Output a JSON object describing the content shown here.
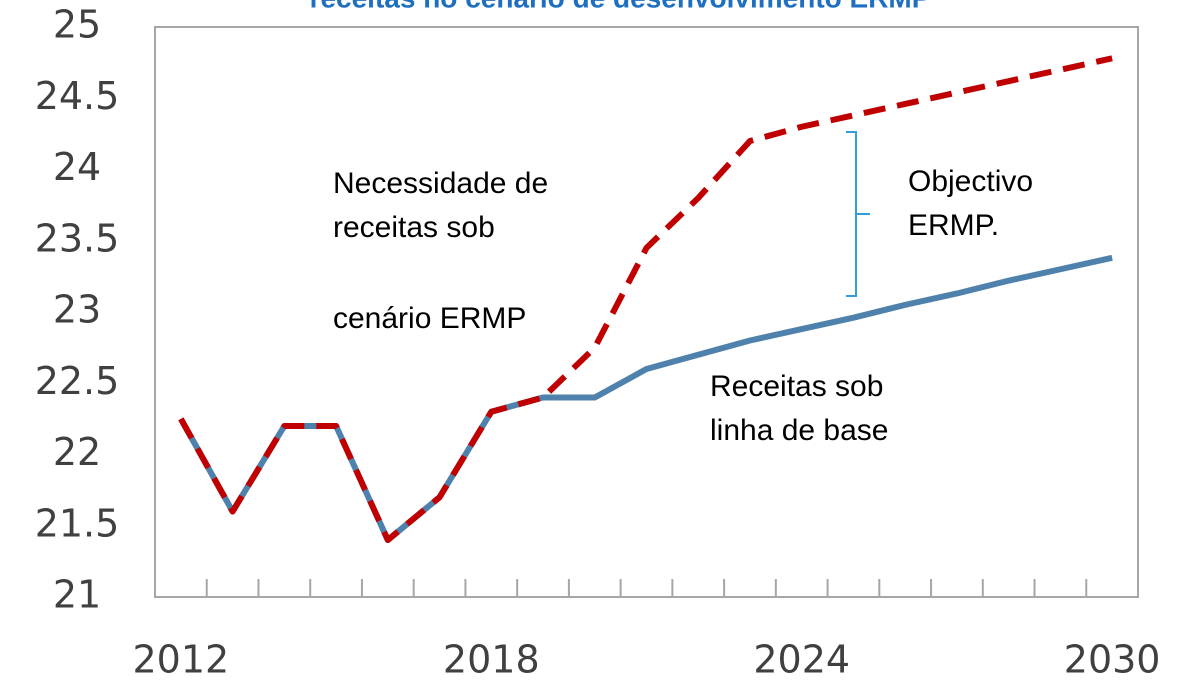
{
  "chart_data": {
    "type": "line",
    "title": "receitas no cenário de desenvolvimento ERMP",
    "categories": [
      "2012",
      null,
      null,
      null,
      null,
      null,
      "2018",
      null,
      null,
      null,
      null,
      null,
      "2024",
      null,
      null,
      null,
      null,
      null,
      "2030"
    ],
    "series": [
      {
        "color": "#4f81ad",
        "dash": false,
        "values": [
          22.25,
          21.6,
          22.2,
          22.2,
          21.4,
          21.7,
          22.3,
          22.4,
          22.4,
          22.6,
          22.7,
          22.8,
          22.88,
          22.96,
          23.05,
          23.13,
          23.22,
          23.3,
          23.38
        ]
      },
      {
        "color": "#c00000",
        "dash": true,
        "values": [
          22.25,
          21.6,
          22.2,
          22.2,
          21.4,
          21.7,
          22.3,
          22.4,
          22.75,
          23.45,
          23.8,
          24.2,
          24.3,
          24.38,
          24.46,
          24.54,
          24.62,
          24.7,
          24.78
        ]
      }
    ],
    "ylim": [
      21,
      25
    ],
    "yticks": [
      21,
      21.5,
      22,
      22.5,
      23,
      23.5,
      24,
      24.5,
      25
    ],
    "grid": false,
    "annotations": [
      {
        "lines": [
          "Necessidade de",
          "receitas sob"
        ]
      },
      {
        "lines": [
          "cenário ERMP"
        ]
      },
      {
        "lines": [
          "Objectivo",
          "ERMP."
        ]
      },
      {
        "lines": [
          "Receitas sob",
          "linha de base"
        ]
      }
    ]
  }
}
